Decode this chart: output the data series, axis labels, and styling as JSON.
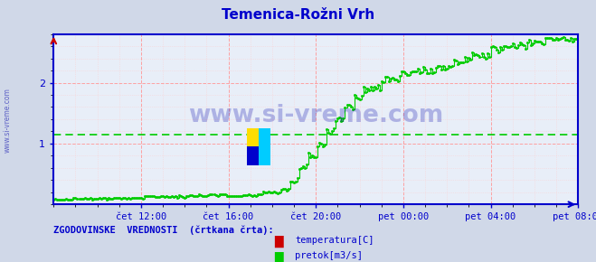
{
  "title": "Temenica-Rožni Vrh",
  "title_color": "#0000cc",
  "bg_color": "#d0d8e8",
  "plot_bg_color": "#e8eef8",
  "grid_color_major": "#ff9999",
  "grid_color_minor": "#ffcccc",
  "axis_color": "#0000cc",
  "tick_label_color": "#0000cc",
  "watermark_text": "www.si-vreme.com",
  "watermark_color": "#0000aa",
  "watermark_alpha": 0.25,
  "sidebar_text": "www.si-vreme.com",
  "sidebar_color": "#0000aa",
  "legend_label": "ZGODOVINSKE  VREDNOSTI  (črtkana črta):",
  "legend_label_color": "#0000cc",
  "series1_label": "temperatura[C]",
  "series1_color": "#cc0000",
  "series2_label": "pretok[m3/s]",
  "series2_color": "#00cc00",
  "ylim": [
    0,
    2.8
  ],
  "yticks": [
    1,
    2
  ],
  "xlim_start": 0,
  "xlim_end": 288,
  "xtick_positions": [
    48,
    96,
    144,
    192,
    240,
    288
  ],
  "xtick_labels": [
    "čet 12:00",
    "čet 16:00",
    "čet 20:00",
    "pet 00:00",
    "pet 04:00",
    "pet 08:00"
  ],
  "historical_pretok": 1.14
}
